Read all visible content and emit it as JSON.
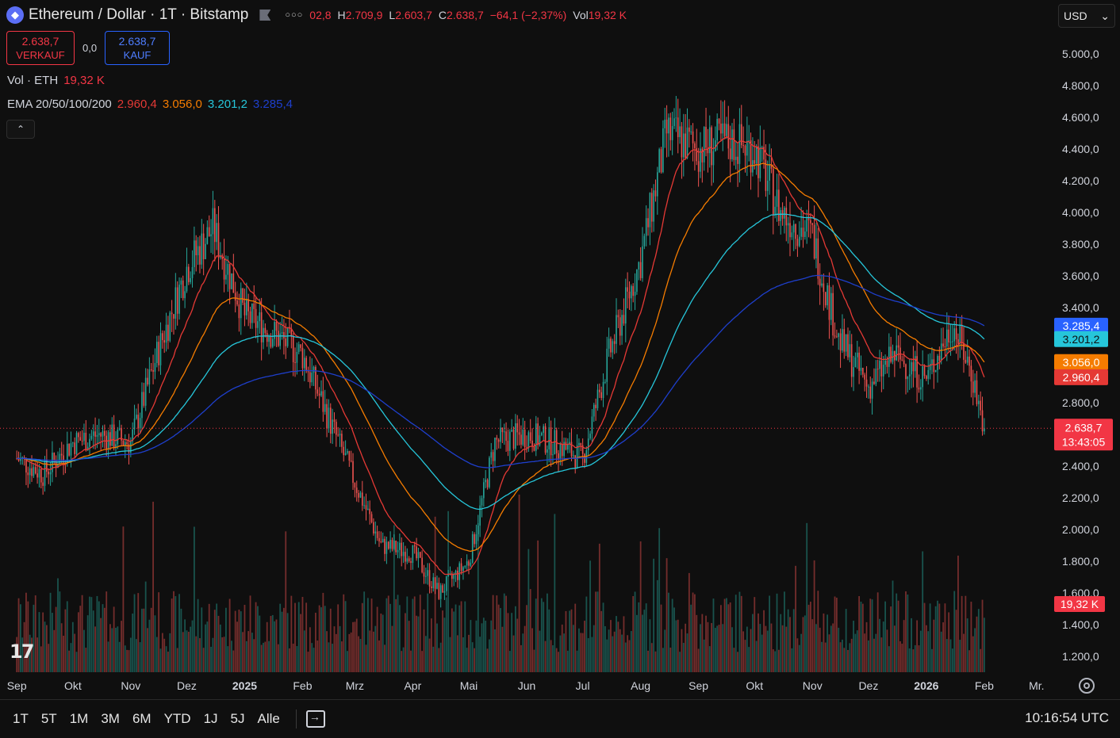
{
  "header": {
    "symbol_icon": "ethereum-icon",
    "title": "Ethereum / Dollar · 1T · Bitstamp",
    "ohlc_open_fragment": "02,8",
    "ohlc_high_label": "H",
    "ohlc_high": "2.709,9",
    "ohlc_low_label": "L",
    "ohlc_low": "2.603,7",
    "ohlc_close_label": "C",
    "ohlc_close": "2.638,7",
    "ohlc_change": "−64,1 (−2,37%)",
    "vol_label": "Vol",
    "vol_value": "19,32 K",
    "currency": "USD"
  },
  "trade": {
    "sell_price": "2.638,7",
    "sell_label": "VERKAUF",
    "spread": "0,0",
    "buy_price": "2.638,7",
    "buy_label": "KAUF"
  },
  "legend": {
    "vol_title": "Vol · ETH",
    "vol_value": "19,32 K",
    "ema_title": "EMA 20/50/100/200",
    "ema20": "2.960,4",
    "ema50": "3.056,0",
    "ema100": "3.201,2",
    "ema200": "3.285,4"
  },
  "colors": {
    "background": "#0f0f0f",
    "up": "#26a69a",
    "down": "#ef5350",
    "ema20": "#e53935",
    "ema50": "#f57c00",
    "ema100": "#26c6da",
    "ema200": "#1e3fcc",
    "current_price": "#f23645"
  },
  "range_buttons": [
    "1T",
    "5T",
    "1M",
    "3M",
    "6M",
    "YTD",
    "1J",
    "5J",
    "Alle"
  ],
  "clock": "10:16:54 UTC",
  "chart_data": {
    "type": "candlestick",
    "ylim": [
      1100,
      5150
    ],
    "y_ticks": [
      1200,
      1400,
      1600,
      1800,
      2000,
      2200,
      2400,
      2600,
      2800,
      3000,
      3200,
      3400,
      3600,
      3800,
      4000,
      4200,
      4400,
      4600,
      4800,
      5000
    ],
    "y_tick_labels": [
      "1.200,0",
      "1.400,0",
      "1.600,0",
      "1.800,0",
      "2.000,0",
      "2.200,0",
      "2.400,0",
      "2.600,0",
      "2.800,0",
      "3.000,0",
      "3.200,0",
      "3.400,0",
      "3.600,0",
      "3.800,0",
      "4.000,0",
      "4.200,0",
      "4.400,0",
      "4.600,0",
      "4.800,0",
      "5.000,0"
    ],
    "x_labels": [
      "Sep",
      "Okt",
      "Nov",
      "Dez",
      "2025",
      "Feb",
      "Mrz",
      "Apr",
      "Mai",
      "Jun",
      "Jul",
      "Aug",
      "Sep",
      "Okt",
      "Nov",
      "Dez",
      "2026",
      "Feb",
      "Mr."
    ],
    "x_bold": [
      "2025",
      "2026"
    ],
    "closes": [
      {
        "date": "2024-09-01",
        "close": 2450
      },
      {
        "date": "2024-09-15",
        "close": 2350
      },
      {
        "date": "2024-10-01",
        "close": 2550
      },
      {
        "date": "2024-10-15",
        "close": 2600
      },
      {
        "date": "2024-11-01",
        "close": 2550
      },
      {
        "date": "2024-11-15",
        "close": 3100
      },
      {
        "date": "2024-12-01",
        "close": 3650
      },
      {
        "date": "2024-12-15",
        "close": 3900
      },
      {
        "date": "2025-01-01",
        "close": 3350
      },
      {
        "date": "2025-01-15",
        "close": 3250
      },
      {
        "date": "2025-02-01",
        "close": 3100
      },
      {
        "date": "2025-02-15",
        "close": 2700
      },
      {
        "date": "2025-03-01",
        "close": 2300
      },
      {
        "date": "2025-03-15",
        "close": 1900
      },
      {
        "date": "2025-04-01",
        "close": 1850
      },
      {
        "date": "2025-04-15",
        "close": 1600
      },
      {
        "date": "2025-05-01",
        "close": 1800
      },
      {
        "date": "2025-05-15",
        "close": 2550
      },
      {
        "date": "2025-06-01",
        "close": 2600
      },
      {
        "date": "2025-06-15",
        "close": 2550
      },
      {
        "date": "2025-07-01",
        "close": 2450
      },
      {
        "date": "2025-07-15",
        "close": 3100
      },
      {
        "date": "2025-08-01",
        "close": 3700
      },
      {
        "date": "2025-08-15",
        "close": 4500
      },
      {
        "date": "2025-09-01",
        "close": 4400
      },
      {
        "date": "2025-09-15",
        "close": 4450
      },
      {
        "date": "2025-10-01",
        "close": 4400
      },
      {
        "date": "2025-10-15",
        "close": 4000
      },
      {
        "date": "2025-11-01",
        "close": 3850
      },
      {
        "date": "2025-11-15",
        "close": 3200
      },
      {
        "date": "2025-12-01",
        "close": 2900
      },
      {
        "date": "2025-12-15",
        "close": 3100
      },
      {
        "date": "2026-01-01",
        "close": 2950
      },
      {
        "date": "2026-01-15",
        "close": 3300
      },
      {
        "date": "2026-01-25",
        "close": 3000
      },
      {
        "date": "2026-02-01",
        "close": 2638.7
      }
    ],
    "ema_series": [
      {
        "name": "EMA 20",
        "last": 2960.4
      },
      {
        "name": "EMA 50",
        "last": 3056.0
      },
      {
        "name": "EMA 100",
        "last": 3201.2
      },
      {
        "name": "EMA 200",
        "last": 3285.4
      }
    ],
    "price_badges": [
      {
        "label": "3.285,4",
        "value": 3285.4,
        "color": "#2962ff"
      },
      {
        "label": "3.201,2",
        "value": 3201.2,
        "color": "#26c6da"
      },
      {
        "label": "3.056,0",
        "value": 3056.0,
        "color": "#f57c00"
      },
      {
        "label": "2.960,4",
        "value": 2960.4,
        "color": "#e53935"
      }
    ],
    "current_price": {
      "label": "2.638,7",
      "time": "13:43:05",
      "value": 2638.7
    },
    "volume_badge": "19,32 K"
  }
}
